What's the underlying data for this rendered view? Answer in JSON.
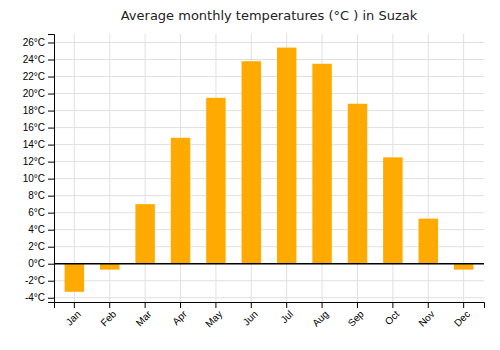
{
  "chart_data": {
    "type": "bar",
    "title": "Average monthly temperatures (°C ) in Suzak",
    "categories": [
      "Jan",
      "Feb",
      "Mar",
      "Apr",
      "May",
      "Jun",
      "Jul",
      "Aug",
      "Sep",
      "Oct",
      "Nov",
      "Dec"
    ],
    "values": [
      -3.3,
      -0.7,
      7.0,
      14.8,
      19.5,
      23.8,
      25.4,
      23.5,
      18.8,
      12.5,
      5.3,
      -0.7
    ],
    "color": "#FFAA00",
    "ylim": [
      -4.5,
      27
    ],
    "yticks": [
      {
        "value": -4,
        "label": "-4°C"
      },
      {
        "value": -2,
        "label": "-2°C"
      },
      {
        "value": 0,
        "label": "0°C"
      },
      {
        "value": 2,
        "label": "2°C"
      },
      {
        "value": 4,
        "label": "4°C"
      },
      {
        "value": 6,
        "label": "6°C"
      },
      {
        "value": 8,
        "label": "8°C"
      },
      {
        "value": 10,
        "label": "10°C"
      },
      {
        "value": 12,
        "label": "12°C"
      },
      {
        "value": 14,
        "label": "14°C"
      },
      {
        "value": 16,
        "label": "16°C"
      },
      {
        "value": 18,
        "label": "18°C"
      },
      {
        "value": 20,
        "label": "20°C"
      },
      {
        "value": 22,
        "label": "22°C"
      },
      {
        "value": 24,
        "label": "24°C"
      },
      {
        "value": 26,
        "label": "26°C"
      }
    ],
    "grid": true
  }
}
